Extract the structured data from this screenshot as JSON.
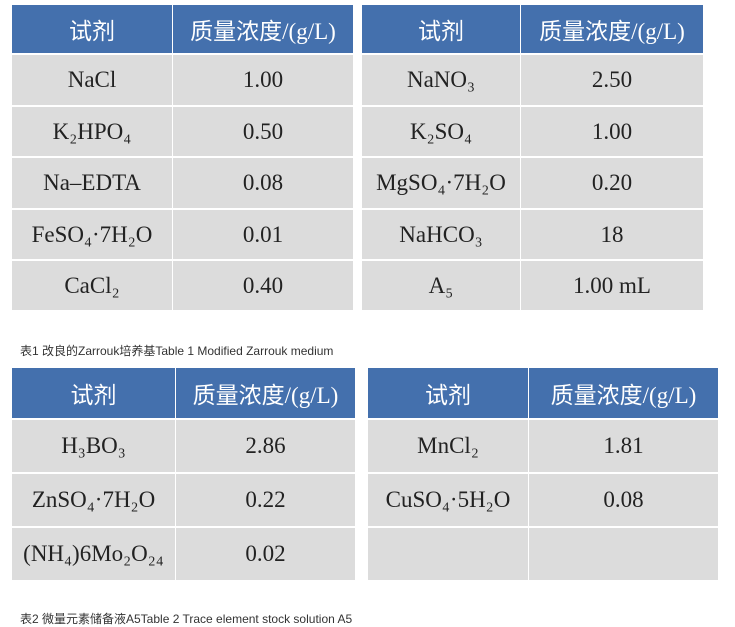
{
  "tables": [
    {
      "header": [
        "试剂",
        "质量浓度/(g/L)",
        "试剂",
        "质量浓度/(g/L)"
      ],
      "rows": [
        [
          "NaCl",
          "1.00",
          "NaNO₃",
          "2.50"
        ],
        [
          "K₂HPO₄",
          "0.50",
          "K₂SO₄",
          "1.00"
        ],
        [
          "Na–EDTA",
          "0.08",
          "MgSO₄·7H₂O",
          "0.20"
        ],
        [
          "FeSO₄·7H₂O",
          "0.01",
          "NaHCO₃",
          "18"
        ],
        [
          "CaCl₂",
          "0.40",
          "A₅",
          "1.00 mL"
        ]
      ],
      "caption": "表1 改良的Zarrouk培养基Table 1 Modified Zarrouk medium"
    },
    {
      "header": [
        "试剂",
        "质量浓度/(g/L)",
        "试剂",
        "质量浓度/(g/L)"
      ],
      "rows": [
        [
          "H₃BO₃",
          "2.86",
          "MnCl₂",
          "1.81"
        ],
        [
          "ZnSO₄·7H₂O",
          "0.22",
          "CuSO₄·5H₂O",
          "0.08"
        ],
        [
          "(NH₄)6Mo₂O₂₄",
          "0.02"
        ]
      ],
      "caption": "表2 微量元素储备液A5Table 2 Trace element stock solution A5"
    }
  ]
}
